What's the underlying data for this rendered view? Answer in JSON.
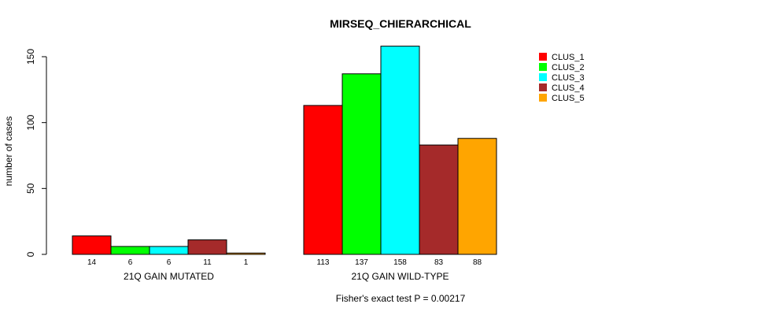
{
  "chart_data": {
    "type": "bar",
    "title": "MIRSEQ_CHIERARCHICAL",
    "xlabel": "",
    "ylabel": "number of cases",
    "ylim": [
      0,
      150
    ],
    "yticks": [
      0,
      50,
      100,
      150
    ],
    "grid": false,
    "legend_position": "top-right",
    "groups": [
      "21Q GAIN MUTATED",
      "21Q GAIN WILD-TYPE"
    ],
    "series": [
      {
        "name": "CLUS_1",
        "color": "#ff0000",
        "values": [
          14,
          113
        ]
      },
      {
        "name": "CLUS_2",
        "color": "#00ff00",
        "values": [
          6,
          137
        ]
      },
      {
        "name": "CLUS_3",
        "color": "#00ffff",
        "values": [
          6,
          158
        ]
      },
      {
        "name": "CLUS_4",
        "color": "#a52a2a",
        "values": [
          11,
          83
        ]
      },
      {
        "name": "CLUS_5",
        "color": "#ffa500",
        "values": [
          1,
          88
        ]
      }
    ],
    "footnote": "Fisher's exact test P = 0.00217"
  }
}
